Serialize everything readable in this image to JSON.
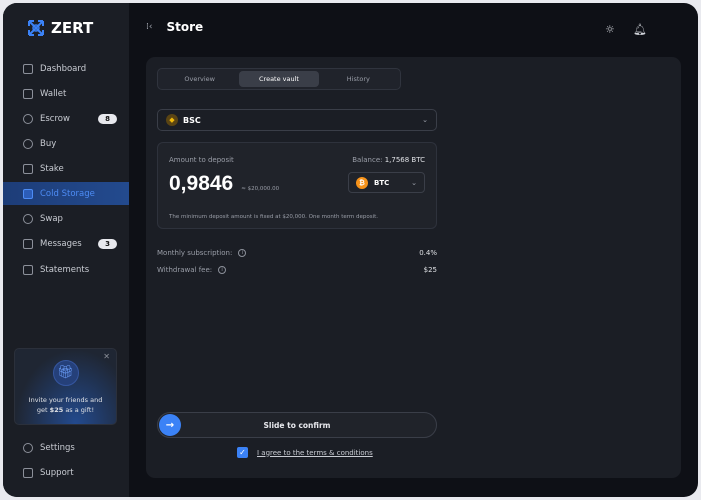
{
  "app": {
    "name": "ZERT"
  },
  "sidebar": {
    "items": [
      {
        "label": "Dashboard",
        "icon": "grid-icon"
      },
      {
        "label": "Wallet",
        "icon": "wallet-icon"
      },
      {
        "label": "Escrow",
        "icon": "shield-icon",
        "badge": "8"
      },
      {
        "label": "Buy",
        "icon": "coins-icon"
      },
      {
        "label": "Stake",
        "icon": "stack-icon"
      },
      {
        "label": "Cold Storage",
        "icon": "safe-icon",
        "active": true
      },
      {
        "label": "Swap",
        "icon": "swap-icon"
      },
      {
        "label": "Messages",
        "icon": "message-icon",
        "badge": "3"
      },
      {
        "label": "Statements",
        "icon": "document-icon"
      }
    ],
    "promo": {
      "line1": "Invite your friends and",
      "line2_pre": "get ",
      "line2_amount": "$25",
      "line2_post": " as a gift!"
    },
    "footer": [
      {
        "label": "Settings",
        "icon": "gear-icon"
      },
      {
        "label": "Support",
        "icon": "help-icon"
      }
    ]
  },
  "header": {
    "title": "Store"
  },
  "tabs": [
    {
      "label": "Overview"
    },
    {
      "label": "Create vault",
      "active": true
    },
    {
      "label": "History"
    }
  ],
  "network": {
    "value": "BSC"
  },
  "deposit": {
    "label": "Amount to deposit",
    "balance_label": "Balance:",
    "balance": "1,7568 BTC",
    "amount": "0,9846",
    "usd": "≈ $20,000.00",
    "currency": "BTC",
    "note": "The minimum deposit amount is fixed at $20,000. One month term deposit."
  },
  "fees": [
    {
      "label": "Monthly subscription:",
      "value": "0.4%"
    },
    {
      "label": "Withdrawal fee:",
      "value": "$25"
    }
  ],
  "confirm": {
    "label": "Slide to confirm",
    "progress": 0
  },
  "terms": {
    "label": "I agree to the terms & conditions",
    "checked": true
  },
  "colors": {
    "accent": "#3b82f6",
    "bg": "#0e1016",
    "panel": "#1b1e25"
  }
}
